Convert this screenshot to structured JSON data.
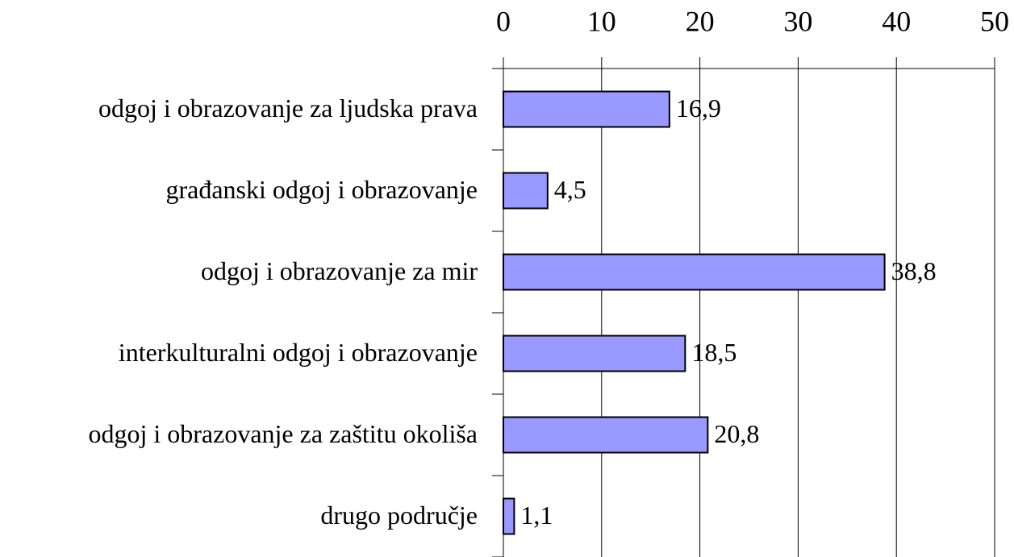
{
  "chart_data": {
    "type": "barh",
    "categories": [
      "odgoj i obrazovanje za ljudska prava",
      "građanski odgoj i obrazovanje",
      "odgoj i obrazovanje za mir",
      "interkulturalni odgoj i obrazovanje",
      "odgoj i obrazovanje za zaštitu okoliša",
      "drugo područje"
    ],
    "values": [
      16.9,
      4.5,
      38.8,
      18.5,
      20.8,
      1.1
    ],
    "value_labels": [
      "16,9",
      "4,5",
      "38,8",
      "18,5",
      "20,8",
      "1,1"
    ],
    "color": "#9999ff",
    "xlim": [
      0,
      50
    ],
    "xticks": [
      0,
      10,
      20,
      30,
      40,
      50
    ],
    "grid": true
  }
}
